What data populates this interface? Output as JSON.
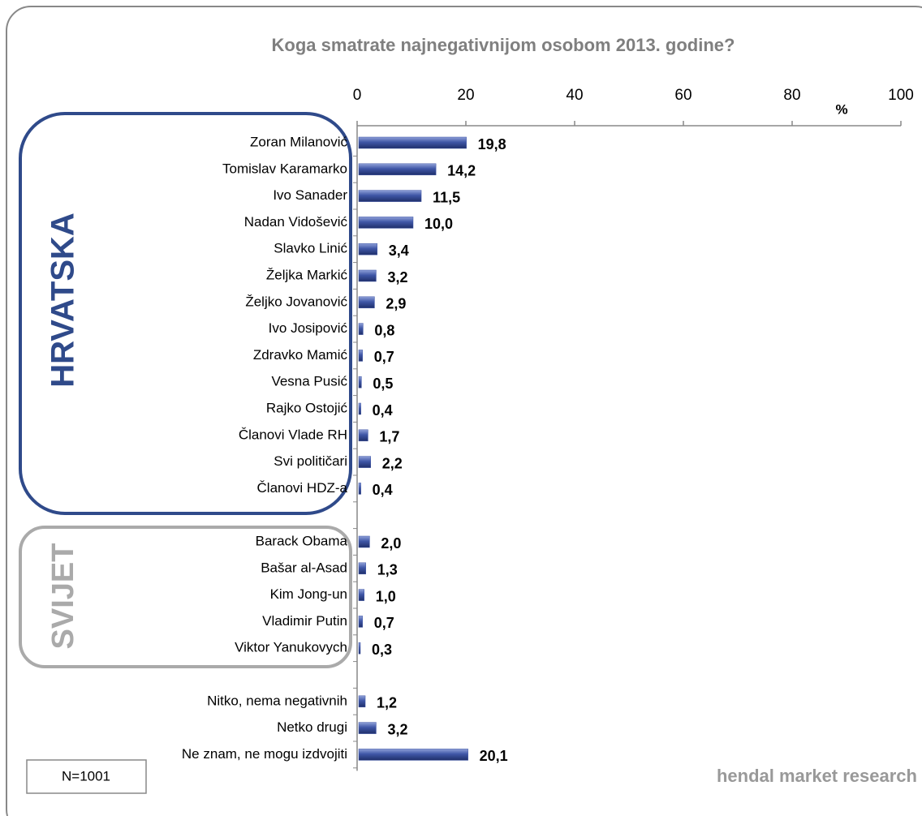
{
  "chart_data": {
    "type": "bar",
    "orientation": "horizontal",
    "title": "Koga smatrate najnegativnijom osobom 2013. godine?",
    "xlabel": "%",
    "categories": [
      "Zoran Milanović",
      "Tomislav Karamarko",
      "Ivo Sanader",
      "Nadan Vidošević",
      "Slavko Linić",
      "Željka Markić",
      "Željko Jovanović",
      "Ivo Josipović",
      "Zdravko Mamić",
      "Vesna Pusić",
      "Rajko Ostojić",
      "Članovi Vlade RH",
      "Svi političari",
      "Članovi HDZ-a",
      null,
      "Barack Obama",
      "Bašar al-Asad",
      "Kim Jong-un",
      "Vladimir Putin",
      "Viktor Yanukovych",
      null,
      "Nitko, nema negativnih",
      "Netko drugi",
      "Ne znam, ne mogu izdvojiti"
    ],
    "values": [
      19.8,
      14.2,
      11.5,
      10.0,
      3.4,
      3.2,
      2.9,
      0.8,
      0.7,
      0.5,
      0.4,
      1.7,
      2.2,
      0.4,
      null,
      2.0,
      1.3,
      1.0,
      0.7,
      0.3,
      null,
      1.2,
      3.2,
      20.1
    ],
    "value_labels": [
      "19,8",
      "14,2",
      "11,5",
      "10,0",
      "3,4",
      "3,2",
      "2,9",
      "0,8",
      "0,7",
      "0,5",
      "0,4",
      "1,7",
      "2,2",
      "0,4",
      null,
      "2,0",
      "1,3",
      "1,0",
      "0,7",
      "0,3",
      null,
      "1,2",
      "3,2",
      "20,1"
    ],
    "color": "#3f56a6",
    "xlim": [
      0,
      100
    ],
    "xticks": [
      0,
      20,
      40,
      60,
      80,
      100
    ],
    "groups": [
      {
        "label": "HRVATSKA"
      },
      {
        "label": "SVIJET"
      }
    ],
    "note": "N=1001",
    "source": "hendal market research"
  }
}
